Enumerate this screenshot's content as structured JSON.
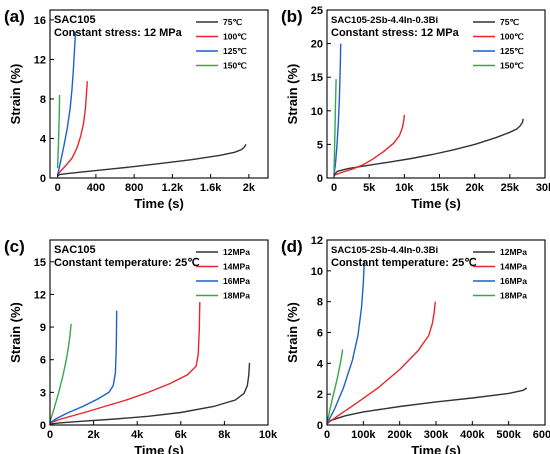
{
  "chart_data": [
    {
      "type": "line",
      "panel_label": "(a)",
      "title": "SAC105",
      "subtitle": "Constant stress: 12 MPa",
      "xlabel": "Time (s)",
      "ylabel": "Strain (%)",
      "xlim": [
        -80,
        2200
      ],
      "ylim": [
        0,
        17
      ],
      "xticks": [
        0,
        400,
        800,
        1200,
        1600,
        2000
      ],
      "xtick_labels": [
        "0",
        "400",
        "800",
        "1.2k",
        "1.6k",
        "2k"
      ],
      "yticks": [
        0,
        4,
        8,
        12,
        16
      ],
      "ytick_labels": [
        "0",
        "4",
        "8",
        "12",
        "16"
      ],
      "legend_position": "top-right",
      "series": [
        {
          "name": "75℃",
          "color": "#333333",
          "x": [
            0,
            20,
            100,
            300,
            500,
            800,
            1100,
            1400,
            1700,
            1850,
            1920,
            1950,
            1970
          ],
          "y": [
            0.2,
            0.35,
            0.45,
            0.65,
            0.85,
            1.15,
            1.5,
            1.85,
            2.3,
            2.6,
            2.85,
            3.1,
            3.4
          ]
        },
        {
          "name": "100℃",
          "color": "#e8262b",
          "x": [
            0,
            30,
            80,
            150,
            200,
            240,
            270,
            290,
            300,
            305,
            310
          ],
          "y": [
            0.3,
            0.7,
            1.2,
            2.0,
            3.0,
            4.2,
            5.5,
            7.0,
            8.3,
            9.0,
            9.8
          ]
        },
        {
          "name": "125℃",
          "color": "#1b5fd3",
          "x": [
            0,
            20,
            60,
            100,
            130,
            150,
            165,
            175,
            182,
            186
          ],
          "y": [
            0.3,
            1.2,
            3.0,
            5.0,
            7.0,
            9.0,
            11.0,
            12.8,
            14.0,
            14.8
          ]
        },
        {
          "name": "150℃",
          "color": "#3aa64b",
          "x": [
            0,
            5,
            10,
            15,
            18,
            20
          ],
          "y": [
            1.0,
            2.5,
            4.0,
            5.8,
            7.2,
            8.4
          ]
        }
      ]
    },
    {
      "type": "line",
      "panel_label": "(b)",
      "title": "SAC105-2Sb-4.4In-0.3Bi",
      "subtitle": "Constant stress: 12 MPa",
      "xlabel": "Time (s)",
      "ylabel": "Strain (%)",
      "xlim": [
        -1000,
        30000
      ],
      "ylim": [
        0,
        25
      ],
      "xticks": [
        0,
        5000,
        10000,
        15000,
        20000,
        25000,
        30000
      ],
      "xtick_labels": [
        "0",
        "5k",
        "10k",
        "15k",
        "20k",
        "25k",
        "30k"
      ],
      "yticks": [
        0,
        5,
        10,
        15,
        20,
        25
      ],
      "ytick_labels": [
        "0",
        "5",
        "10",
        "15",
        "20",
        "25"
      ],
      "legend_position": "top-right",
      "series": [
        {
          "name": "75℃",
          "color": "#333333",
          "x": [
            0,
            500,
            2000,
            5000,
            8000,
            11000,
            14000,
            17000,
            20000,
            23000,
            25000,
            26000,
            26500,
            26800,
            26900
          ],
          "y": [
            0.5,
            1.0,
            1.4,
            1.9,
            2.4,
            2.9,
            3.5,
            4.2,
            5.0,
            6.0,
            6.8,
            7.3,
            7.8,
            8.3,
            8.8
          ]
        },
        {
          "name": "100℃",
          "color": "#e8262b",
          "x": [
            0,
            1000,
            2500,
            4000,
            5500,
            7000,
            8500,
            9300,
            9700,
            9900,
            10000
          ],
          "y": [
            0.4,
            0.8,
            1.3,
            1.9,
            2.8,
            3.9,
            5.2,
            6.3,
            7.4,
            8.5,
            9.4
          ]
        },
        {
          "name": "125℃",
          "color": "#1b5fd3",
          "x": [
            0,
            200,
            400,
            600,
            750,
            850,
            900,
            950
          ],
          "y": [
            0.5,
            2.0,
            4.5,
            8.0,
            11.5,
            15.0,
            17.5,
            20.0
          ]
        },
        {
          "name": "150℃",
          "color": "#3aa64b",
          "x": [
            0,
            50,
            100,
            150,
            200,
            250,
            300
          ],
          "y": [
            1.0,
            3.0,
            5.5,
            8.0,
            10.5,
            12.8,
            14.7
          ]
        }
      ]
    },
    {
      "type": "line",
      "panel_label": "(c)",
      "title": "SAC105",
      "subtitle": "Constant temperature: 25℃",
      "xlabel": "Time (s)",
      "ylabel": "Strain (%)",
      "xlim": [
        0,
        10000
      ],
      "ylim": [
        0,
        17
      ],
      "xticks": [
        0,
        2000,
        4000,
        6000,
        8000,
        10000
      ],
      "xtick_labels": [
        "0",
        "2k",
        "4k",
        "6k",
        "8k",
        "10k"
      ],
      "yticks": [
        0,
        3,
        6,
        9,
        12,
        15
      ],
      "ytick_labels": [
        "0",
        "3",
        "6",
        "9",
        "12",
        "15"
      ],
      "legend_position": "top-right",
      "series": [
        {
          "name": "12MPa",
          "color": "#333333",
          "x": [
            0,
            500,
            1500,
            3000,
            4500,
            6000,
            7500,
            8500,
            8900,
            9050,
            9120,
            9150
          ],
          "y": [
            0.1,
            0.2,
            0.35,
            0.55,
            0.8,
            1.15,
            1.7,
            2.3,
            2.9,
            3.6,
            4.6,
            5.7
          ]
        },
        {
          "name": "14MPa",
          "color": "#e8262b",
          "x": [
            0,
            500,
            1500,
            2500,
            3500,
            4500,
            5500,
            6300,
            6700,
            6800,
            6850,
            6870
          ],
          "y": [
            0.2,
            0.55,
            1.1,
            1.7,
            2.3,
            3.0,
            3.8,
            4.6,
            5.4,
            6.5,
            8.8,
            11.3
          ]
        },
        {
          "name": "16MPa",
          "color": "#1b5fd3",
          "x": [
            0,
            300,
            800,
            1500,
            2200,
            2700,
            2900,
            3000,
            3040,
            3060
          ],
          "y": [
            0.2,
            0.6,
            1.1,
            1.7,
            2.4,
            3.0,
            3.6,
            4.8,
            7.2,
            10.5
          ]
        },
        {
          "name": "18MPa",
          "color": "#3aa64b",
          "x": [
            0,
            200,
            400,
            600,
            750,
            850,
            920,
            970
          ],
          "y": [
            0.3,
            1.6,
            3.0,
            4.6,
            6.0,
            7.2,
            8.3,
            9.3
          ]
        }
      ]
    },
    {
      "type": "line",
      "panel_label": "(d)",
      "title": "SAC105-2Sb-4.4In-0.3Bi",
      "subtitle": "Constant temperature: 25℃",
      "xlabel": "Time (s)",
      "ylabel": "Strain (%)",
      "xlim": [
        0,
        600000
      ],
      "ylim": [
        0,
        12
      ],
      "xticks": [
        0,
        100000,
        200000,
        300000,
        400000,
        500000,
        600000
      ],
      "xtick_labels": [
        "0",
        "100k",
        "200k",
        "300k",
        "400k",
        "500k",
        "600k"
      ],
      "yticks": [
        0,
        2,
        4,
        6,
        8,
        10,
        12
      ],
      "ytick_labels": [
        "0",
        "2",
        "4",
        "6",
        "8",
        "10",
        "12"
      ],
      "legend_position": "top-right",
      "series": [
        {
          "name": "12MPa",
          "color": "#333333",
          "x": [
            0,
            10000,
            50000,
            100000,
            200000,
            300000,
            400000,
            500000,
            540000,
            550000
          ],
          "y": [
            0.05,
            0.3,
            0.6,
            0.85,
            1.2,
            1.5,
            1.75,
            2.05,
            2.25,
            2.4
          ]
        },
        {
          "name": "14MPa",
          "color": "#e8262b",
          "x": [
            0,
            30000,
            80000,
            140000,
            200000,
            250000,
            280000,
            290000,
            295000,
            298000
          ],
          "y": [
            0.1,
            0.6,
            1.4,
            2.4,
            3.6,
            4.8,
            5.8,
            6.6,
            7.3,
            8.0
          ]
        },
        {
          "name": "16MPa",
          "color": "#1b5fd3",
          "x": [
            0,
            20000,
            45000,
            70000,
            85000,
            95000,
            100000,
            103000
          ],
          "y": [
            0.1,
            1.0,
            2.4,
            4.2,
            5.8,
            7.6,
            9.2,
            10.7
          ]
        },
        {
          "name": "18MPa",
          "color": "#3aa64b",
          "x": [
            0,
            8000,
            18000,
            28000,
            35000,
            40000,
            43000
          ],
          "y": [
            0.1,
            1.0,
            2.0,
            3.0,
            3.8,
            4.4,
            4.9
          ]
        }
      ]
    }
  ]
}
